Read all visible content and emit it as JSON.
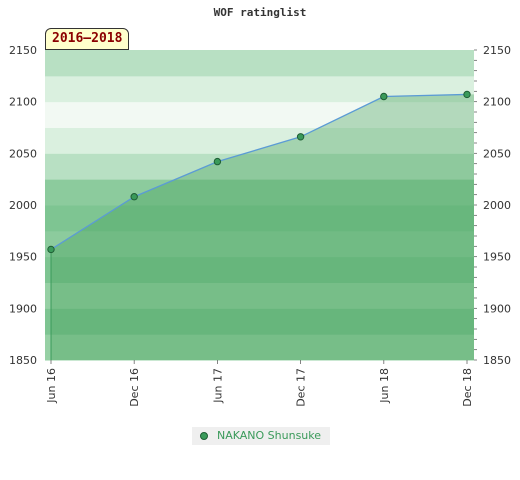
{
  "chart_data": {
    "type": "area",
    "title": "WOF ratinglist",
    "period_label": "2016–2018",
    "x": [
      "Jun 16",
      "Dec 16",
      "Jun 17",
      "Dec 17",
      "Jun 18",
      "Dec 18"
    ],
    "series": [
      {
        "name": "NAKANO Shunsuke",
        "values": [
          1957,
          2008,
          2042,
          2066,
          2105,
          2107
        ]
      }
    ],
    "ylim": [
      1850,
      2150
    ],
    "yticks": [
      1850,
      1900,
      1950,
      2000,
      2050,
      2100,
      2150
    ],
    "yaxis_both_sides": true,
    "legend_position": "bottom-center",
    "colors": {
      "line": "#5b9bd5",
      "marker_fill": "#3a9a5a",
      "marker_stroke": "#1e5e34",
      "legend_text": "#3a9a5a",
      "badge_text": "#8b0000",
      "badge_bg": "#ffffcc"
    }
  }
}
